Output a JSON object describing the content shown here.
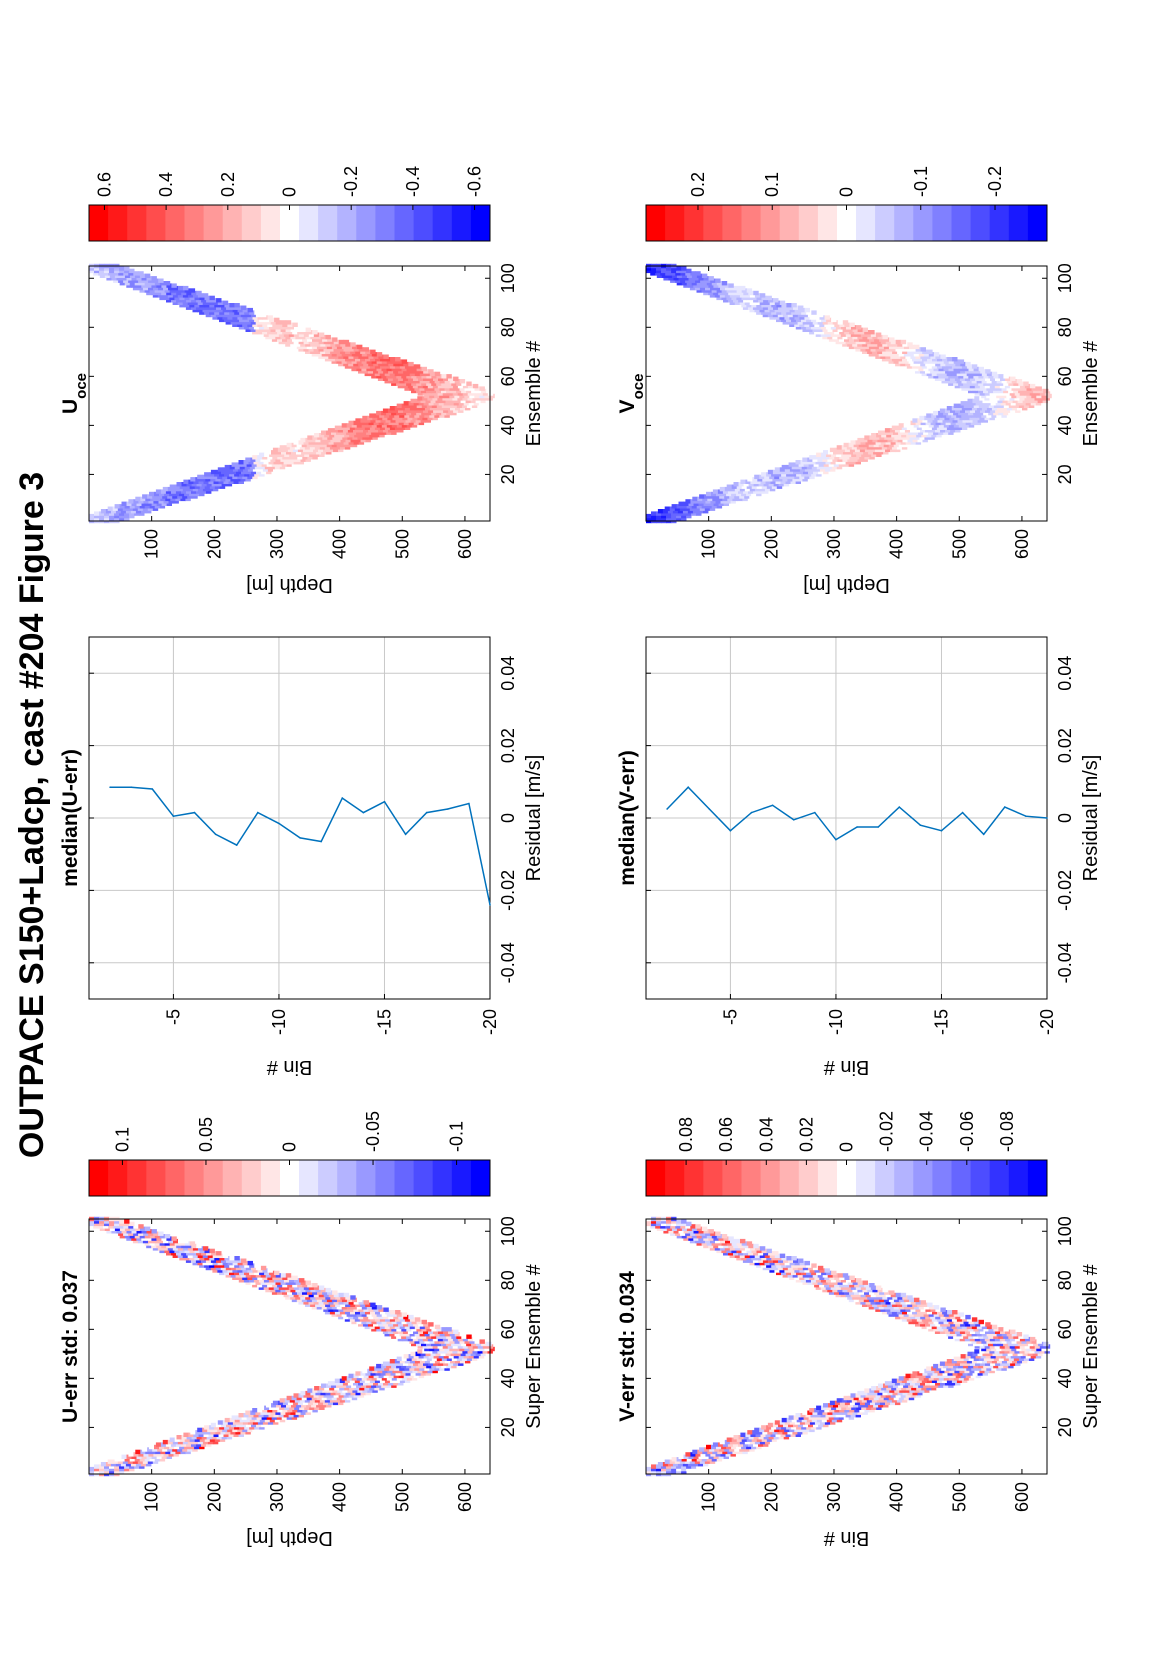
{
  "figure_title": "OUTPACE S150+Ladcp, cast #204  Figure 3",
  "chart_data": [
    {
      "type": "heatmap",
      "title": "U-err std: 0.037",
      "xlabel": "Super Ensemble #",
      "ylabel": "Depth [m]",
      "xlim": [
        1,
        105
      ],
      "ylim": [
        0,
        640
      ],
      "xticks": [
        "20",
        "40",
        "60",
        "80",
        "100"
      ],
      "yticks": [
        "100",
        "200",
        "300",
        "400",
        "500",
        "600"
      ],
      "shape": "v",
      "turn_ensemble": 52,
      "max_depth": 600,
      "amplitude": 0.12,
      "colorbar": {
        "range": [
          -0.12,
          0.12
        ],
        "ticks": [
          "0.1",
          "0.05",
          "0",
          "-0.05",
          "-0.1"
        ],
        "tick_values": [
          0.1,
          0.05,
          0,
          -0.05,
          -0.1
        ]
      }
    },
    {
      "type": "line",
      "title": "median(U-err)",
      "xlabel": "Residual [m/s]",
      "ylabel": "Bin #",
      "xlim": [
        -0.05,
        0.05
      ],
      "ylim": [
        -20,
        -1
      ],
      "xticks": [
        "-0.04",
        "-0.02",
        "0",
        "0.02",
        "0.04"
      ],
      "yticks": [
        "-5",
        "-10",
        "-15",
        "-20"
      ],
      "grid": true,
      "series": [
        {
          "bin": [
            -2,
            -3,
            -4,
            -5,
            -6,
            -7,
            -8,
            -9,
            -10,
            -11,
            -12,
            -13,
            -14,
            -15,
            -16,
            -17,
            -18,
            -19,
            -20
          ],
          "residual": [
            0.0085,
            0.0085,
            0.008,
            0.0005,
            0.0015,
            -0.0045,
            -0.0075,
            0.0015,
            -0.0015,
            -0.0055,
            -0.0065,
            0.0055,
            0.0015,
            0.0045,
            -0.0045,
            0.0015,
            0.0025,
            0.004,
            -0.024
          ]
        }
      ]
    },
    {
      "type": "heatmap",
      "title": "U",
      "title_sub": "oce",
      "xlabel": "Ensemble #",
      "ylabel": "Depth [m]",
      "xlim": [
        1,
        105
      ],
      "ylim": [
        0,
        640
      ],
      "xticks": [
        "20",
        "40",
        "60",
        "80",
        "100"
      ],
      "yticks": [
        "100",
        "200",
        "300",
        "400",
        "500",
        "600"
      ],
      "shape": "v",
      "turn_ensemble": 52,
      "max_depth": 600,
      "amplitude": 0.6,
      "colorbar": {
        "range": [
          -0.65,
          0.65
        ],
        "ticks": [
          "0.6",
          "0.4",
          "0.2",
          "0",
          "-0.2",
          "-0.4",
          "-0.6"
        ],
        "tick_values": [
          0.6,
          0.4,
          0.2,
          0,
          -0.2,
          -0.4,
          -0.6
        ]
      }
    },
    {
      "type": "heatmap",
      "title": "V-err std: 0.034",
      "xlabel": "Super Ensemble #",
      "ylabel": "Bin #",
      "xlim": [
        1,
        105
      ],
      "ylim": [
        0,
        640
      ],
      "xticks": [
        "20",
        "40",
        "60",
        "80",
        "100"
      ],
      "yticks": [
        "100",
        "200",
        "300",
        "400",
        "500",
        "600"
      ],
      "shape": "v",
      "turn_ensemble": 52,
      "max_depth": 600,
      "amplitude": 0.1,
      "colorbar": {
        "range": [
          -0.1,
          0.1
        ],
        "ticks": [
          "0.08",
          "0.06",
          "0.04",
          "0.02",
          "0",
          "-0.02",
          "-0.04",
          "-0.06",
          "-0.08"
        ],
        "tick_values": [
          0.08,
          0.06,
          0.04,
          0.02,
          0,
          -0.02,
          -0.04,
          -0.06,
          -0.08
        ]
      }
    },
    {
      "type": "line",
      "title": "median(V-err)",
      "xlabel": "Residual [m/s]",
      "ylabel": "Bin #",
      "xlim": [
        -0.05,
        0.05
      ],
      "ylim": [
        -20,
        -1
      ],
      "xticks": [
        "-0.04",
        "-0.02",
        "0",
        "0.02",
        "0.04"
      ],
      "yticks": [
        "-5",
        "-10",
        "-15",
        "-20"
      ],
      "grid": true,
      "series": [
        {
          "bin": [
            -2,
            -3,
            -4,
            -5,
            -6,
            -7,
            -8,
            -9,
            -10,
            -11,
            -12,
            -13,
            -14,
            -15,
            -16,
            -17,
            -18,
            -19,
            -20
          ],
          "residual": [
            0.0025,
            0.0085,
            0.0025,
            -0.0035,
            0.0015,
            0.0035,
            -0.0005,
            0.0015,
            -0.006,
            -0.0025,
            -0.0025,
            0.003,
            -0.002,
            -0.0035,
            0.0015,
            -0.0045,
            0.003,
            0.0005,
            0.0
          ]
        }
      ]
    },
    {
      "type": "heatmap",
      "title": "V",
      "title_sub": "oce",
      "xlabel": "Ensemble #",
      "ylabel": "Depth [m]",
      "xlim": [
        1,
        105
      ],
      "ylim": [
        0,
        640
      ],
      "xticks": [
        "20",
        "40",
        "60",
        "80",
        "100"
      ],
      "yticks": [
        "100",
        "200",
        "300",
        "400",
        "500",
        "600"
      ],
      "shape": "v",
      "turn_ensemble": 52,
      "max_depth": 600,
      "amplitude": 0.25,
      "colorbar": {
        "range": [
          -0.27,
          0.27
        ],
        "ticks": [
          "0.2",
          "0.1",
          "0",
          "-0.1",
          "-0.2"
        ],
        "tick_values": [
          0.2,
          0.1,
          0,
          -0.1,
          -0.2
        ]
      }
    }
  ]
}
